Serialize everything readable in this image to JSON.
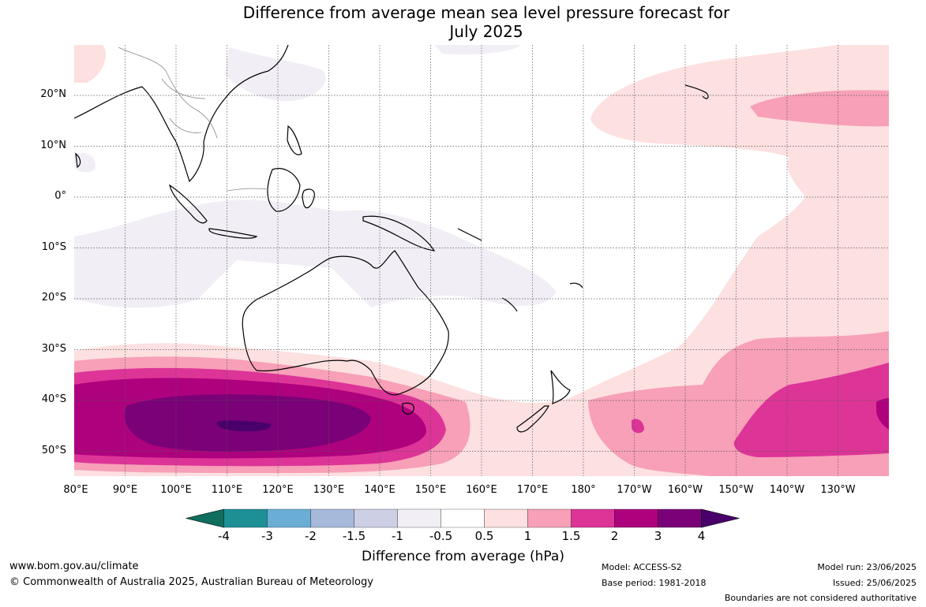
{
  "title": {
    "line1": "Difference from average mean sea level pressure forecast for",
    "line2": "July 2025"
  },
  "map": {
    "lat_labels": [
      "20°N",
      "10°N",
      "0°",
      "10°S",
      "20°S",
      "30°S",
      "40°S",
      "50°S"
    ],
    "lon_labels": [
      "80°E",
      "90°E",
      "100°E",
      "110°E",
      "120°E",
      "130°E",
      "140°E",
      "150°E",
      "160°E",
      "170°E",
      "180°",
      "170°W",
      "160°W",
      "150°W",
      "140°W",
      "130°W"
    ],
    "extent": {
      "lon_min": 80,
      "lon_max": 240,
      "lat_min": -55,
      "lat_max": 30
    }
  },
  "colorbar": {
    "ticks": [
      "-4",
      "-3",
      "-2",
      "-1.5",
      "-1",
      "-0.5",
      "0.5",
      "1",
      "1.5",
      "2",
      "3",
      "4"
    ],
    "colors": [
      "#0f6e5e",
      "#1d9096",
      "#6aaed6",
      "#a6b9da",
      "#cdd0e5",
      "#f1eef6",
      "#ffffff",
      "#fde0e0",
      "#f7a0b8",
      "#dd3497",
      "#ae017e",
      "#7a0177",
      "#49006a"
    ],
    "label": "Difference from average (hPa)"
  },
  "footer": {
    "url": "www.bom.gov.au/climate",
    "copyright": "© Commonwealth of Australia 2025, Australian Bureau of Meteorology",
    "model": "Model: ACCESS-S2",
    "base_period": "Base period: 1981-2018",
    "model_run": "Model run: 23/06/2025",
    "issued": "Issued: 25/06/2025",
    "disclaimer": "Boundaries are not considered authoritative"
  }
}
